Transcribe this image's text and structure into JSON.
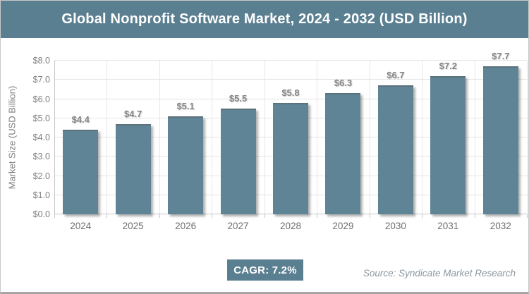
{
  "header": {
    "title": "Global Nonprofit Software Market, 2024 - 2032 (USD Billion)"
  },
  "chart_data": {
    "type": "bar",
    "title": "Global Nonprofit Software Market, 2024 - 2032 (USD Billion)",
    "categories": [
      "2024",
      "2025",
      "2026",
      "2027",
      "2028",
      "2029",
      "2030",
      "2031",
      "2032"
    ],
    "values": [
      4.4,
      4.7,
      5.1,
      5.5,
      5.8,
      6.3,
      6.7,
      7.2,
      7.7
    ],
    "value_labels": [
      "$4.4",
      "$4.7",
      "$5.1",
      "$5.5",
      "$5.8",
      "$6.3",
      "$6.7",
      "$7.2",
      "$7.7"
    ],
    "xlabel": "",
    "ylabel": "Market Size (USD Billion)",
    "ylim": [
      0,
      8
    ],
    "ytick_interval": 1,
    "ytick_labels": [
      "$0.0",
      "$1.0",
      "$2.0",
      "$3.0",
      "$4.0",
      "$5.0",
      "$6.0",
      "$7.0",
      "$8.0"
    ],
    "grid": true,
    "legend": "none",
    "bar_color": "#5f8496"
  },
  "footer": {
    "cagr_label": "CAGR: 7.2%",
    "source": "Source: Syndicate Market Research"
  },
  "colors": {
    "accent_teal": "#5a7f91",
    "bar_fill": "#5f8496",
    "grid_line": "#e4e4e4",
    "axis_line": "#c6c6c6",
    "label_gray": "#7f7f7f"
  }
}
